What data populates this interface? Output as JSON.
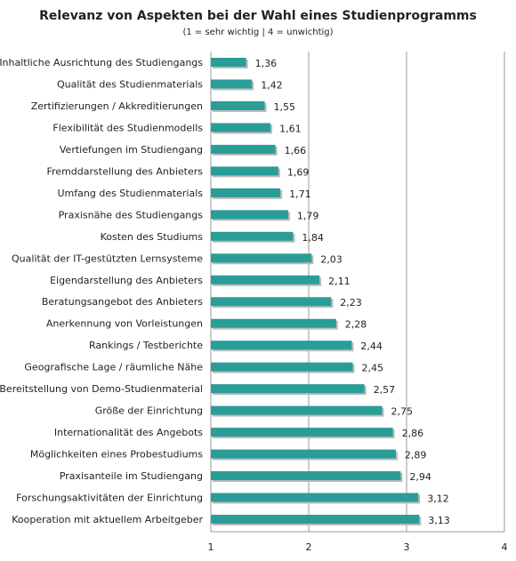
{
  "chart_data": {
    "type": "barh",
    "title": "Relevanz von Aspekten bei der Wahl eines Studienprogramms",
    "subtitle": "(1 = sehr wichtig | 4 = unwichtig)",
    "categories": [
      "Inhaltliche Ausrichtung des Studiengangs",
      "Qualität des Studienmaterials",
      "Zertifizierungen / Akkreditierungen",
      "Flexibilität des Studienmodells",
      "Vertiefungen im Studiengang",
      "Fremddarstellung des Anbieters",
      "Umfang des Studienmaterials",
      "Praxisnähe des Studiengangs",
      "Kosten des Studiums",
      "Qualität der IT-gestützten Lernsysteme",
      "Eigendarstellung des Anbieters",
      "Beratungsangebot des Anbieters",
      "Anerkennung von Vorleistungen",
      "Rankings / Testberichte",
      "Geografische Lage / räumliche Nähe",
      "Bereitstellung von Demo-Studienmaterial",
      "Größe der Einrichtung",
      "Internationalität des Angebots",
      "Möglichkeiten eines Probestudiums",
      "Praxisanteile im Studiengang",
      "Forschungsaktivitäten der Einrichtung",
      "Kooperation mit aktuellem Arbeitgeber"
    ],
    "values": [
      1.36,
      1.42,
      1.55,
      1.61,
      1.66,
      1.69,
      1.71,
      1.79,
      1.84,
      2.03,
      2.11,
      2.23,
      2.28,
      2.44,
      2.45,
      2.57,
      2.75,
      2.86,
      2.89,
      2.94,
      3.12,
      3.13
    ],
    "value_labels": [
      "1,36",
      "1,42",
      "1,55",
      "1,61",
      "1,66",
      "1,69",
      "1,71",
      "1,79",
      "1,84",
      "2,03",
      "2,11",
      "2,23",
      "2,28",
      "2,44",
      "2,45",
      "2,57",
      "2,75",
      "2,86",
      "2,89",
      "2,94",
      "3,12",
      "3,13"
    ],
    "color": "#2a9d96",
    "xlim": [
      1,
      4
    ],
    "xticks": [
      1,
      2,
      3,
      4
    ],
    "grid": true
  }
}
